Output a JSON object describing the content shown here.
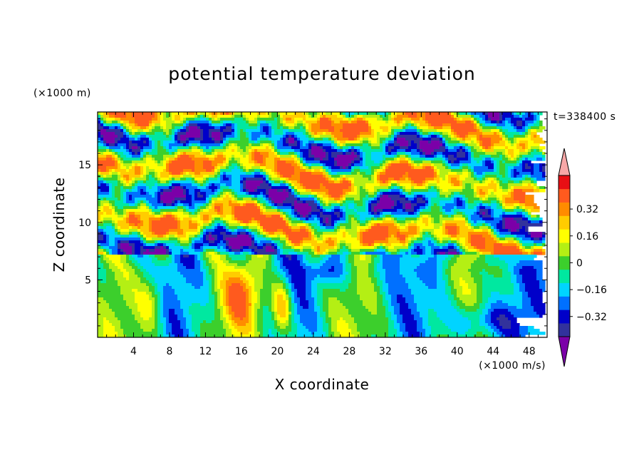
{
  "colors": {
    "levels": [
      "#7b00a8",
      "#32329c",
      "#0000c9",
      "#0070ff",
      "#00d4ff",
      "#00e8a0",
      "#3ccf2c",
      "#b4ef14",
      "#ffff00",
      "#ffcc00",
      "#ff8c00",
      "#ff5a1e",
      "#e80f14",
      "#f8a8a8"
    ],
    "frame": "#000000"
  },
  "chart_data": {
    "type": "heatmap",
    "title": "potential temperature deviation",
    "xlabel": "X coordinate",
    "ylabel": "Z coordinate",
    "x_unit": "(×1000 m/s)",
    "y_unit": "(×1000 m)",
    "time_label": "t=338400 s",
    "xlim": [
      0,
      50
    ],
    "ylim": [
      0,
      19.6
    ],
    "x_ticks": [
      4,
      8,
      12,
      16,
      20,
      24,
      28,
      32,
      36,
      40,
      44,
      48
    ],
    "y_ticks": [
      5,
      10,
      15
    ],
    "colorbar": {
      "levels": [
        -0.4,
        -0.32,
        -0.24,
        -0.16,
        -0.08,
        0,
        0.08,
        0.16,
        0.24,
        0.32,
        0.4
      ],
      "tick_labels": [
        {
          "value": 0.32,
          "label": "0.32"
        },
        {
          "value": 0.16,
          "label": "0.16"
        },
        {
          "value": 0,
          "label": "0"
        },
        {
          "value": -0.16,
          "label": "−0.16"
        },
        {
          "value": -0.32,
          "label": "−0.32"
        }
      ],
      "extend": "both"
    }
  }
}
